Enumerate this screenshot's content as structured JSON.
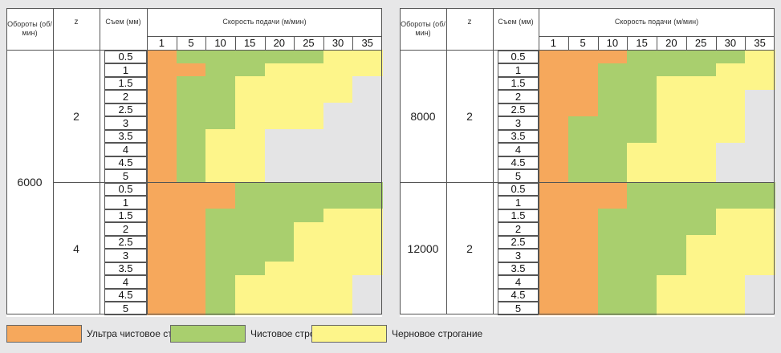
{
  "colors": {
    "ultra": "#f6a85c",
    "fine": "#a9cf6e",
    "rough": "#fdf58a",
    "empty": "#e4e4e5"
  },
  "headers": {
    "rpm": "Обороты (об/мин)",
    "z": "z",
    "removal": "Съем (мм)",
    "feed": "Скорость подачи (м/мин)"
  },
  "feed_rates": [
    "1",
    "5",
    "10",
    "15",
    "20",
    "25",
    "30",
    "35"
  ],
  "removals": [
    "0.5",
    "1",
    "1.5",
    "2",
    "2.5",
    "3",
    "3.5",
    "4",
    "4.5",
    "5"
  ],
  "tables": [
    {
      "name": "left",
      "rpm_groups": [
        {
          "rpm": "6000",
          "span": 2
        }
      ],
      "z_groups": [
        {
          "z": "2",
          "rows": [
            "UFFFFFRR",
            "UUFFRRRR",
            "UFFRRRRE",
            "UFFRRRRE",
            "UFFRRREE",
            "UFFRRREE",
            "UFRREEEE",
            "UFRREEEE",
            "UFRREEEE",
            "UFRREEEE"
          ]
        },
        {
          "z": "4",
          "rows": [
            "UUUFFFFF",
            "UUUFFFFF",
            "UUFFFFRR",
            "UUFFFRRR",
            "UUFFFRRR",
            "UUFFFRRR",
            "UUFFRRRR",
            "UUFRRRRE",
            "UUFRRRRE",
            "UUFRRRRE"
          ]
        }
      ]
    },
    {
      "name": "right",
      "rpm_groups": [
        {
          "rpm": "8000",
          "span": 1
        },
        {
          "rpm": "12000",
          "span": 1
        }
      ],
      "z_groups": [
        {
          "z": "2",
          "rows": [
            "UUUFFFFR",
            "UUFFFFRR",
            "UUFFRRRR",
            "UUFFRRRE",
            "UUFFRRRE",
            "UFFFRRRE",
            "UFFFRRRE",
            "UFFRRREE",
            "UFFRRREE",
            "UFFRRREE"
          ]
        },
        {
          "z": "2",
          "rows": [
            "UUUFFFFF",
            "UUUFFFFF",
            "UUFFFFRR",
            "UUFFFFRR",
            "UUFFFRRR",
            "UUFFFRRR",
            "UUFFFRRR",
            "UUFFRRRE",
            "UUFFRRRE",
            "UUFFRRRE"
          ]
        }
      ]
    }
  ],
  "legend": [
    {
      "key": "ultra",
      "label": "Ультра чистовое строгание"
    },
    {
      "key": "fine",
      "label": "Чистовое строгание"
    },
    {
      "key": "rough",
      "label": "Черновое строгание"
    }
  ]
}
